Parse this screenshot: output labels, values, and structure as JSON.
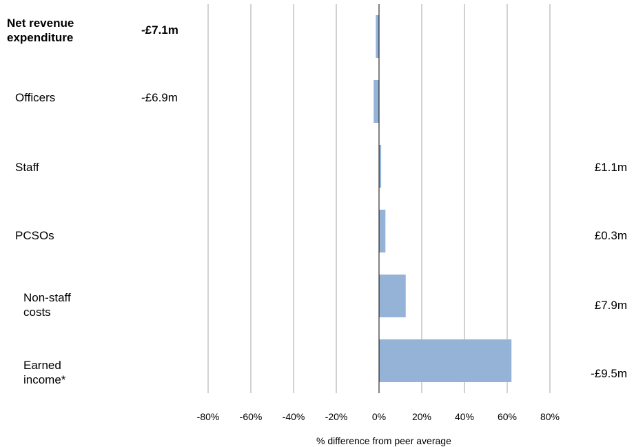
{
  "chart_data": {
    "type": "bar",
    "orientation": "horizontal",
    "categories": [
      "Net revenue\nexpenditure",
      "Officers",
      "Staff",
      "PCSOs",
      "Non-staff\ncosts",
      "Earned\nincome*"
    ],
    "values": [
      -1.5,
      -2.5,
      1.0,
      3.0,
      12.5,
      62.0
    ],
    "value_labels": [
      "-£7.1m",
      "-£6.9m",
      "£1.1m",
      "£0.3m",
      "£7.9m",
      "-£9.5m"
    ],
    "xlabel": "% difference from peer average",
    "ylabel": "",
    "xlim": [
      -80,
      80
    ],
    "xticks": [
      "-80%",
      "-60%",
      "-40%",
      "-20%",
      "0%",
      "20%",
      "40%",
      "60%",
      "80%"
    ],
    "grid": true,
    "bar_color": "#95b3d7",
    "gridline_color": "#a6a6a6",
    "axis_color": "#000000",
    "emphasized_category": "Net revenue\nexpenditure"
  }
}
